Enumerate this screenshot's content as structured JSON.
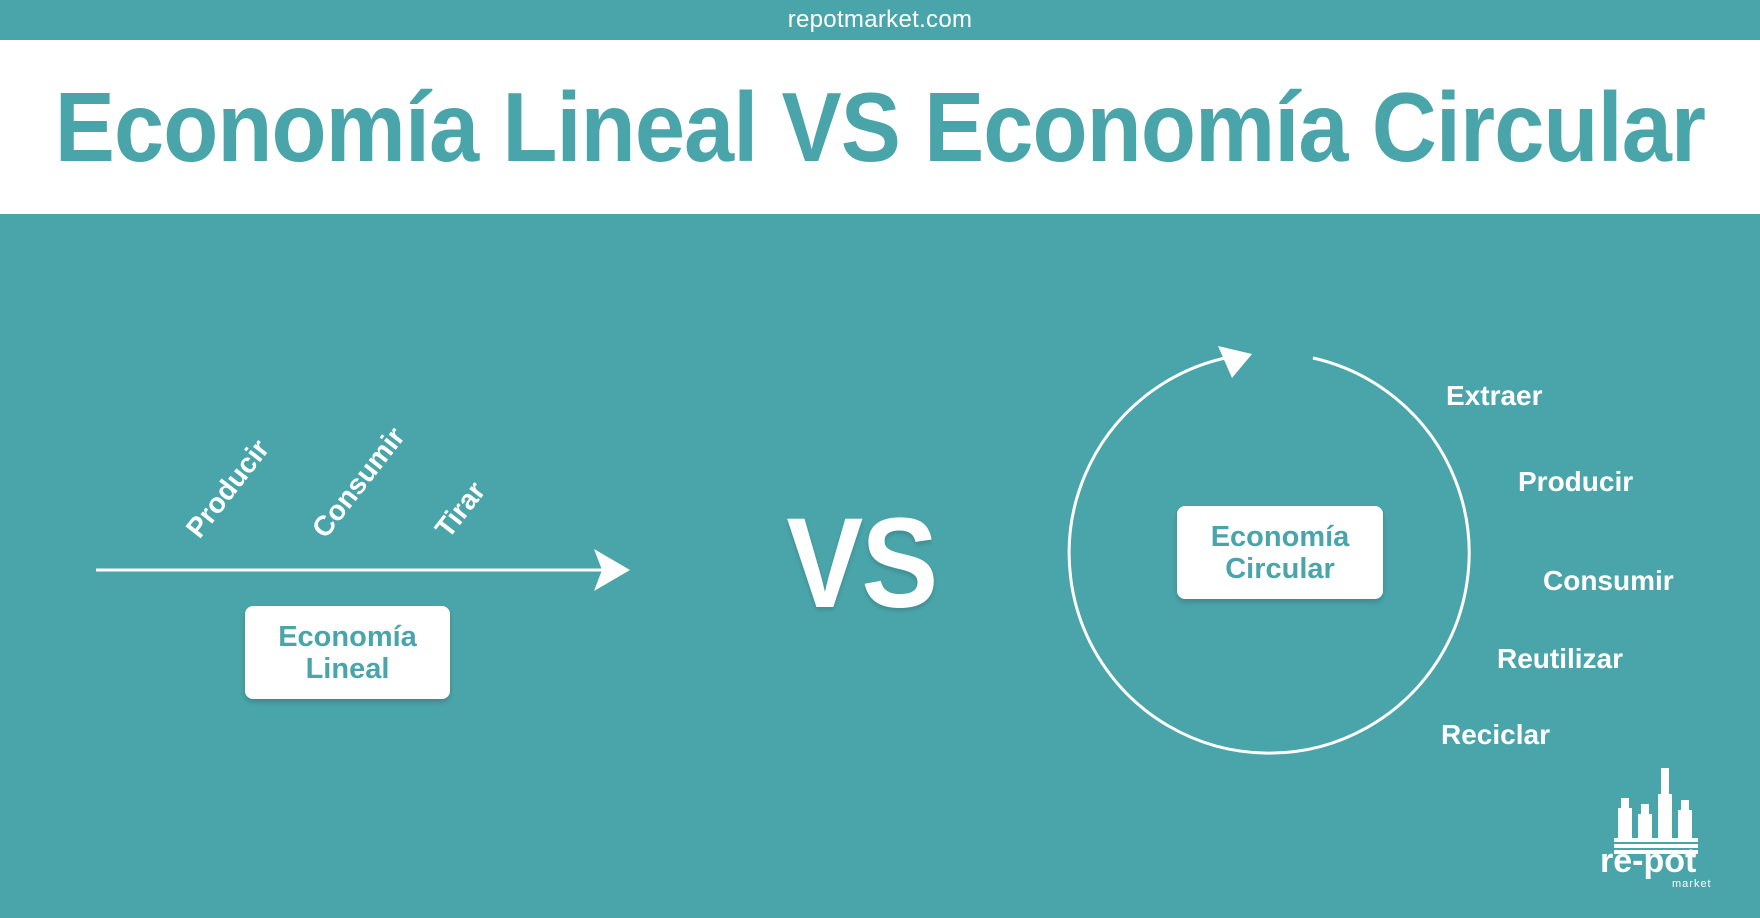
{
  "header": {
    "site": "repotmarket.com",
    "title": "Economía Lineal VS Economía Circular"
  },
  "linear": {
    "steps": [
      "Producir",
      "Consumir",
      "Tirar"
    ],
    "box_line1": "Economía",
    "box_line2": "Lineal"
  },
  "vs_label": "VS",
  "circular": {
    "steps": [
      "Extraer",
      "Producir",
      "Consumir",
      "Reutilizar",
      "Reciclar"
    ],
    "box_line1": "Economía",
    "box_line2": "Circular"
  },
  "logo": {
    "text": "re-pot",
    "sub": "market",
    "icon": "factory-bottles-icon"
  },
  "colors": {
    "background": "#4aa5aa",
    "title": "#4aa5aa",
    "white": "#ffffff"
  }
}
